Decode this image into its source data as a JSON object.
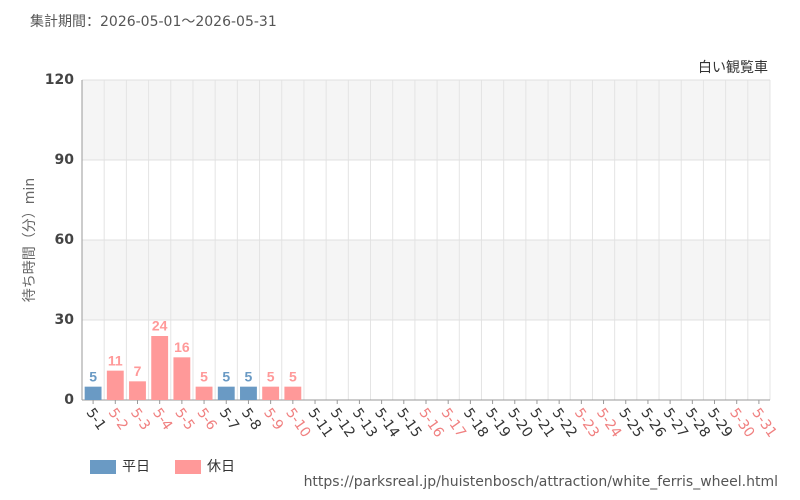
{
  "chart_data": {
    "type": "bar",
    "title": "集計期間：2026-05-01〜2026-05-31",
    "subtitle": "白い観覧車",
    "y_label": "待ち時間（分）min",
    "source": "https://parksreal.jp/huistenbosch/attraction/white_ferris_wheel.html",
    "categories": [
      "5-1",
      "5-2",
      "5-3",
      "5-4",
      "5-5",
      "5-6",
      "5-7",
      "5-8",
      "5-9",
      "5-10",
      "5-11",
      "5-12",
      "5-13",
      "5-14",
      "5-15",
      "5-16",
      "5-17",
      "5-18",
      "5-19",
      "5-20",
      "5-21",
      "5-22",
      "5-23",
      "5-24",
      "5-25",
      "5-26",
      "5-27",
      "5-28",
      "5-29",
      "5-30",
      "5-31"
    ],
    "category_label_colors": [
      "#333333",
      "#f08080",
      "#f08080",
      "#f08080",
      "#f08080",
      "#f08080",
      "#333333",
      "#333333",
      "#f08080",
      "#f08080",
      "#333333",
      "#333333",
      "#333333",
      "#333333",
      "#333333",
      "#f08080",
      "#f08080",
      "#333333",
      "#333333",
      "#333333",
      "#333333",
      "#333333",
      "#f08080",
      "#f08080",
      "#333333",
      "#333333",
      "#333333",
      "#333333",
      "#333333",
      "#f08080",
      "#f08080"
    ],
    "series": [
      {
        "name": "平日",
        "color": "#6a9ac4",
        "values": [
          5,
          null,
          null,
          null,
          null,
          null,
          5,
          5,
          null,
          null,
          null,
          null,
          null,
          null,
          null,
          null,
          null,
          null,
          null,
          null,
          null,
          null,
          null,
          null,
          null,
          null,
          null,
          null,
          null,
          null,
          null
        ]
      },
      {
        "name": "休日",
        "color": "#ff9999",
        "values": [
          null,
          11,
          7,
          24,
          16,
          5,
          null,
          null,
          5,
          5,
          null,
          null,
          null,
          null,
          null,
          null,
          null,
          null,
          null,
          null,
          null,
          null,
          null,
          null,
          null,
          null,
          null,
          null,
          null,
          null,
          null
        ]
      }
    ],
    "ylim": [
      0,
      120
    ],
    "yticks": [
      0,
      30,
      60,
      90,
      120
    ],
    "grid": true
  }
}
